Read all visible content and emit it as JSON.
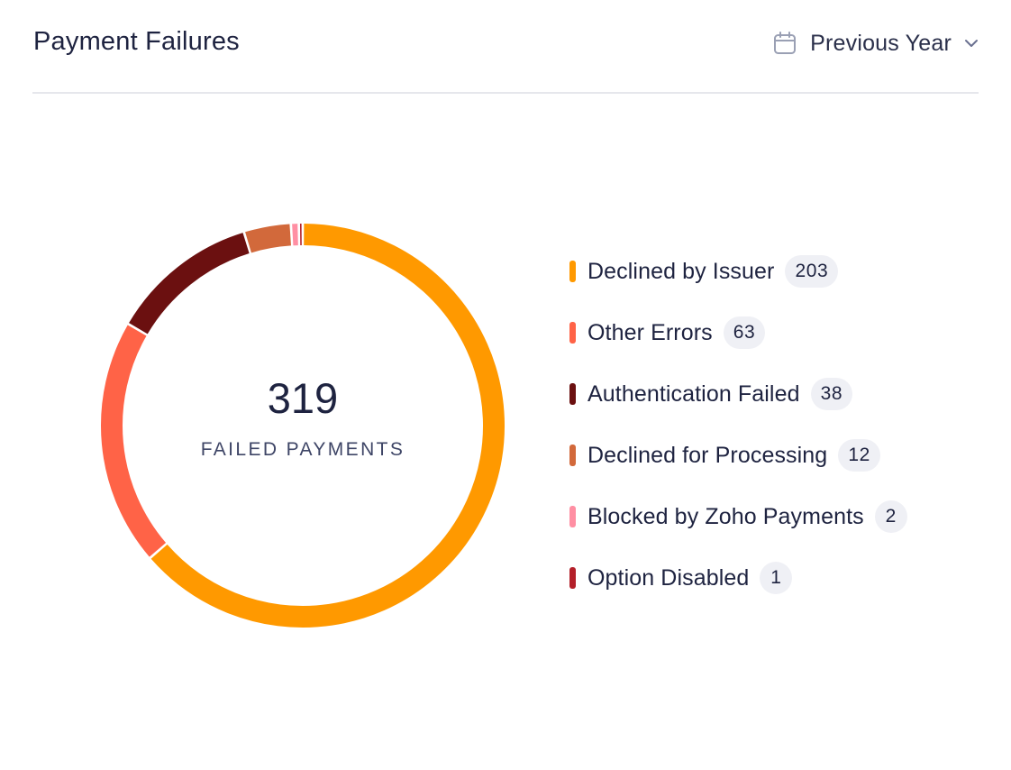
{
  "header": {
    "title": "Payment Failures",
    "period_label": "Previous Year",
    "calendar_icon": "calendar-icon",
    "dropdown_icon": "chevron-down-icon"
  },
  "center": {
    "total": "319",
    "caption": "FAILED PAYMENTS"
  },
  "chart_data": {
    "type": "pie",
    "style": "donut",
    "title": "Payment Failures",
    "center_value": 319,
    "center_label": "FAILED PAYMENTS",
    "legend_position": "right",
    "categories": [
      "Declined by Issuer",
      "Other Errors",
      "Authentication Failed",
      "Declined for Processing",
      "Blocked by Zoho Payments",
      "Option Disabled"
    ],
    "values": [
      203,
      63,
      38,
      12,
      2,
      1
    ],
    "colors": [
      "#ff9900",
      "#ff6347",
      "#6b1010",
      "#d2693b",
      "#ff8fa3",
      "#b4202a"
    ]
  }
}
